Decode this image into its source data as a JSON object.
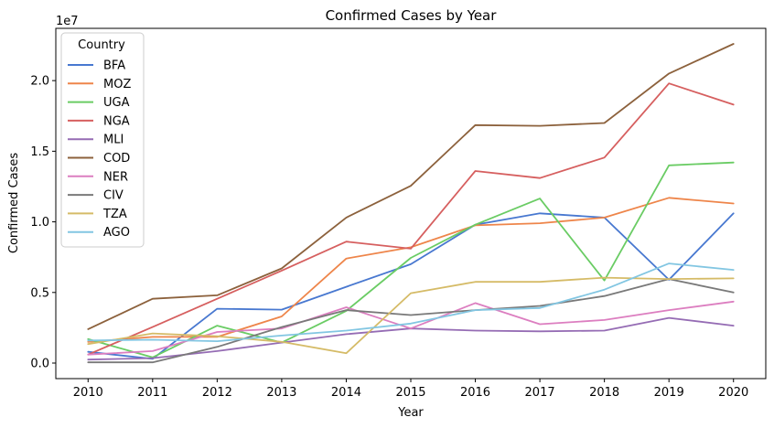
{
  "chart_data": {
    "type": "line",
    "title": "Confirmed Cases by Year",
    "xlabel": "Year",
    "ylabel": "Confirmed Cases",
    "offset_text": "1e7",
    "x": [
      2010,
      2011,
      2012,
      2013,
      2014,
      2015,
      2016,
      2017,
      2018,
      2019,
      2020
    ],
    "x_tick_labels": [
      "2010",
      "2011",
      "2012",
      "2013",
      "2014",
      "2015",
      "2016",
      "2017",
      "2018",
      "2019",
      "2020"
    ],
    "y_ticks": [
      0,
      5000000,
      10000000,
      15000000,
      20000000
    ],
    "y_tick_labels": [
      "0.0",
      "0.5",
      "1.0",
      "1.5",
      "2.0"
    ],
    "xlim": [
      2009.5,
      2020.5
    ],
    "ylim": [
      -1100000,
      23700000
    ],
    "grid": false,
    "legend": {
      "title": "Country",
      "placement": "top-left"
    },
    "series": [
      {
        "name": "BFA",
        "color": "#4878d0",
        "values": [
          800000,
          300000,
          3850000,
          3780000,
          5400000,
          7000000,
          9800000,
          10600000,
          10300000,
          5900000,
          10600000
        ]
      },
      {
        "name": "MOZ",
        "color": "#ee854a",
        "values": [
          1500000,
          1850000,
          1850000,
          3300000,
          7400000,
          8200000,
          9750000,
          9900000,
          10300000,
          11700000,
          11300000
        ]
      },
      {
        "name": "UGA",
        "color": "#6acc64",
        "values": [
          1700000,
          400000,
          2650000,
          1450000,
          3700000,
          7450000,
          9800000,
          11650000,
          5850000,
          14000000,
          14200000
        ]
      },
      {
        "name": "NGA",
        "color": "#d65f5f",
        "values": [
          600000,
          2550000,
          4550000,
          6550000,
          8600000,
          8100000,
          13600000,
          13100000,
          14550000,
          19800000,
          18300000
        ]
      },
      {
        "name": "MLI",
        "color": "#956cb4",
        "values": [
          250000,
          350000,
          850000,
          1450000,
          2050000,
          2450000,
          2300000,
          2250000,
          2300000,
          3200000,
          2650000
        ]
      },
      {
        "name": "COD",
        "color": "#8c613c",
        "values": [
          2400000,
          4550000,
          4800000,
          6700000,
          10300000,
          12550000,
          16850000,
          16800000,
          17000000,
          20500000,
          22600000
        ]
      },
      {
        "name": "NER",
        "color": "#dc7ec0",
        "values": [
          600000,
          850000,
          2200000,
          2450000,
          3950000,
          2450000,
          4250000,
          2750000,
          3050000,
          3750000,
          4350000
        ]
      },
      {
        "name": "CIV",
        "color": "#797979",
        "values": [
          50000,
          50000,
          1150000,
          2550000,
          3750000,
          3400000,
          3750000,
          4050000,
          4750000,
          5950000,
          5000000
        ]
      },
      {
        "name": "TZA",
        "color": "#d5bb67",
        "values": [
          1350000,
          2100000,
          1900000,
          1500000,
          700000,
          4950000,
          5750000,
          5750000,
          6050000,
          5950000,
          6000000
        ]
      },
      {
        "name": "AGO",
        "color": "#82c6e2",
        "values": [
          1600000,
          1650000,
          1550000,
          1950000,
          2300000,
          2800000,
          3750000,
          3900000,
          5200000,
          7050000,
          6600000
        ]
      }
    ]
  }
}
